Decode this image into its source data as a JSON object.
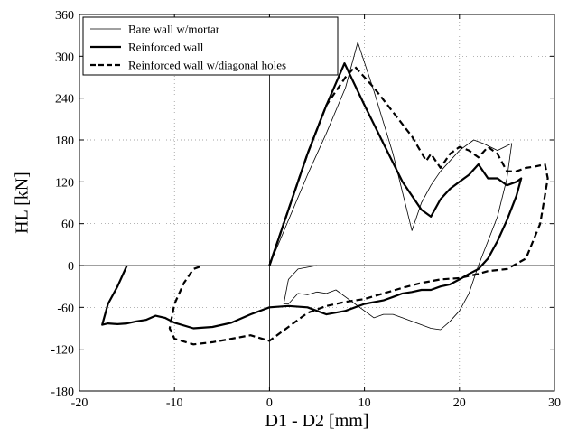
{
  "chart_data": {
    "type": "line",
    "title": "",
    "xlabel": "D1 - D2 [mm]",
    "ylabel": "HL [kN]",
    "xlim": [
      -20,
      30
    ],
    "ylim": [
      -180,
      360
    ],
    "xticks": [
      -20,
      -10,
      0,
      10,
      20,
      30
    ],
    "yticks": [
      -180,
      -120,
      -60,
      0,
      60,
      120,
      180,
      240,
      300,
      360
    ],
    "grid": true,
    "legend_position": "top-left",
    "series": [
      {
        "name": "Bare wall w/mortar",
        "style": "thin-solid",
        "color": "#000000",
        "x": [
          0,
          2,
          4,
          6,
          8,
          8.7,
          9.3,
          11,
          13,
          15,
          16,
          17,
          18,
          20,
          21.5,
          22.5,
          24,
          25.5,
          25,
          24,
          23,
          22,
          21,
          20,
          19,
          18,
          17,
          16,
          15,
          14,
          13,
          12,
          11,
          10,
          9,
          8,
          7,
          6,
          5,
          4,
          3,
          2,
          1.5,
          2,
          3,
          5
        ],
        "y": [
          0,
          65,
          130,
          190,
          255,
          290,
          320,
          250,
          160,
          50,
          90,
          115,
          135,
          165,
          180,
          175,
          165,
          175,
          125,
          70,
          35,
          0,
          -40,
          -65,
          -80,
          -92,
          -90,
          -85,
          -80,
          -75,
          -70,
          -70,
          -75,
          -65,
          -55,
          -45,
          -35,
          -40,
          -38,
          -42,
          -40,
          -55,
          -55,
          -20,
          -5,
          0
        ]
      },
      {
        "name": "Reinforced wall",
        "style": "thick-solid",
        "color": "#000000",
        "x": [
          0,
          2,
          4,
          6,
          7.9,
          10,
          12,
          14,
          16,
          17,
          18,
          19,
          20,
          21,
          22,
          22.5,
          23,
          24,
          25,
          26,
          26.5,
          26,
          25,
          24,
          23,
          22,
          21,
          20,
          19,
          18,
          17,
          16,
          15,
          14,
          13,
          12,
          10,
          8,
          6,
          4,
          2,
          0,
          -2,
          -4,
          -6,
          -8,
          -10,
          -11,
          -12,
          -13,
          -14,
          -15,
          -16,
          -17,
          -17.6,
          -17,
          -16,
          -15
        ],
        "y": [
          0,
          80,
          160,
          230,
          290,
          230,
          175,
          120,
          80,
          70,
          95,
          110,
          120,
          130,
          145,
          135,
          125,
          125,
          115,
          120,
          125,
          100,
          65,
          35,
          10,
          -5,
          -12,
          -20,
          -27,
          -30,
          -35,
          -35,
          -38,
          -40,
          -45,
          -50,
          -55,
          -65,
          -70,
          -60,
          -58,
          -60,
          -70,
          -82,
          -88,
          -90,
          -82,
          -75,
          -72,
          -78,
          -80,
          -83,
          -84,
          -83,
          -85,
          -55,
          -30,
          0
        ]
      },
      {
        "name": "Reinforced wall w/diagonal holes",
        "style": "thick-dashed",
        "color": "#000000",
        "x": [
          0,
          2,
          4,
          6,
          8,
          9,
          11,
          13,
          15,
          16.5,
          17,
          18,
          19,
          20,
          21,
          22,
          23,
          24,
          25,
          26,
          27,
          28,
          29,
          29.3,
          28.5,
          27,
          25,
          23,
          22,
          21,
          20,
          18,
          16,
          14,
          12,
          10,
          8,
          6,
          4,
          2,
          0,
          -2,
          -4,
          -6,
          -8,
          -10,
          -10.5,
          -10,
          -9,
          -8,
          -7
        ],
        "y": [
          0,
          80,
          160,
          230,
          270,
          285,
          255,
          220,
          185,
          150,
          160,
          140,
          160,
          170,
          165,
          155,
          170,
          160,
          135,
          135,
          140,
          142,
          145,
          125,
          60,
          10,
          -5,
          -8,
          -12,
          -15,
          -18,
          -20,
          -25,
          -32,
          -40,
          -48,
          -52,
          -58,
          -68,
          -88,
          -108,
          -100,
          -105,
          -110,
          -113,
          -105,
          -90,
          -55,
          -25,
          -5,
          0
        ]
      }
    ]
  }
}
